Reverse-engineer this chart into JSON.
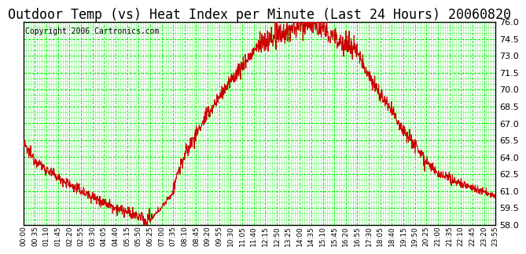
{
  "title": "Outdoor Temp (vs) Heat Index per Minute (Last 24 Hours) 20060820",
  "copyright": "Copyright 2006 Cartronics.com",
  "ylim": [
    58.0,
    76.0
  ],
  "yticks": [
    58.0,
    59.5,
    61.0,
    62.5,
    64.0,
    65.5,
    67.0,
    68.5,
    70.0,
    71.5,
    73.0,
    74.5,
    76.0
  ],
  "line_color": "#cc0000",
  "bg_color": "#ffffff",
  "grid_color": "#00ee00",
  "title_fontsize": 12,
  "copyright_fontsize": 7,
  "xtick_labels": [
    "00:00",
    "00:35",
    "01:10",
    "01:45",
    "02:20",
    "02:55",
    "03:30",
    "04:05",
    "04:40",
    "05:15",
    "05:50",
    "06:25",
    "07:00",
    "07:35",
    "08:10",
    "08:45",
    "09:20",
    "09:55",
    "10:30",
    "11:05",
    "11:40",
    "12:15",
    "12:50",
    "13:25",
    "14:00",
    "14:35",
    "15:10",
    "15:45",
    "16:20",
    "16:55",
    "17:30",
    "18:05",
    "18:40",
    "19:15",
    "19:50",
    "20:25",
    "21:00",
    "21:35",
    "22:10",
    "22:45",
    "23:20",
    "23:55"
  ]
}
